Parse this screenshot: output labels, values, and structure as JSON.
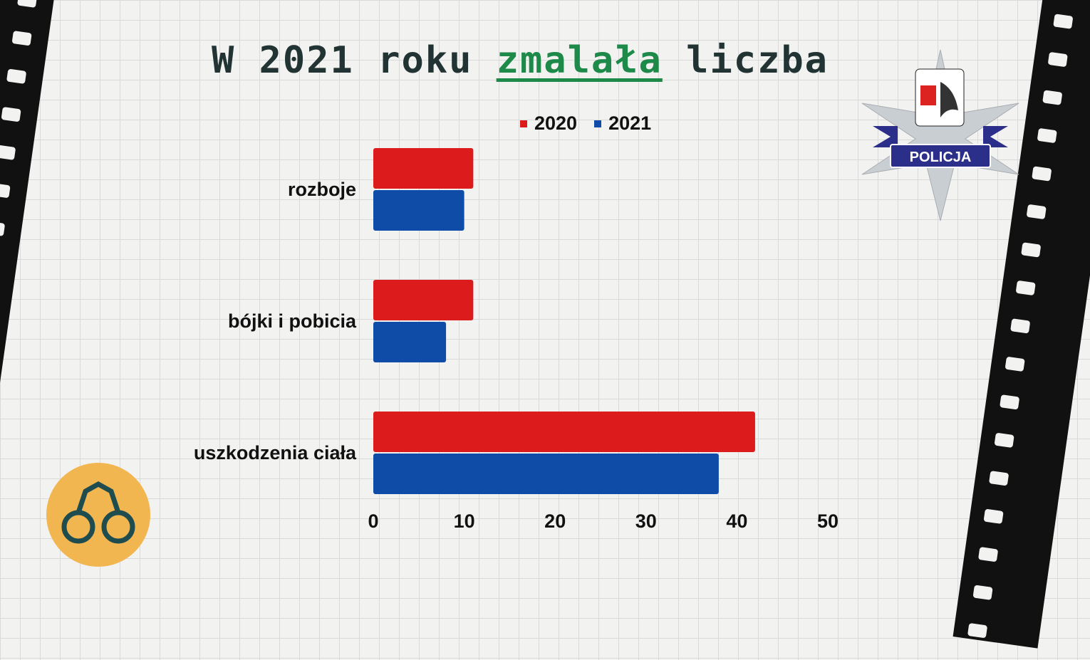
{
  "title": {
    "prefix": "W 2021 roku ",
    "highlight": "zmalała",
    "suffix": " liczba"
  },
  "badge": {
    "text": "POLICJA",
    "icon": "police-star-icon"
  },
  "decor": {
    "left_icon": "handcuffs-icon"
  },
  "colors": {
    "2020": "#dc1c1c",
    "2021": "#0f4ca8"
  },
  "chart_data": {
    "type": "bar",
    "orientation": "horizontal",
    "title": "W 2021 roku zmalała liczba",
    "categories": [
      "rozboje",
      "bójki i pobicia",
      "uszkodzenia ciała"
    ],
    "series": [
      {
        "name": "2020",
        "values": [
          11,
          11,
          42
        ]
      },
      {
        "name": "2021",
        "values": [
          10,
          8,
          38
        ]
      }
    ],
    "xlim": [
      0,
      50
    ],
    "xticks": [
      "0",
      "10",
      "20",
      "30",
      "40",
      "50"
    ],
    "legend": "top",
    "grid": false
  }
}
